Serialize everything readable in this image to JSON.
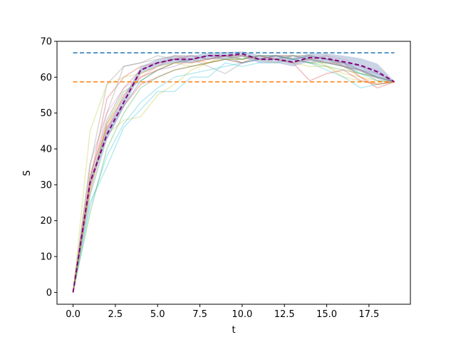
{
  "chart_data": {
    "type": "line",
    "xlabel": "t",
    "ylabel": "S",
    "xlim": [
      -0.95,
      19.95
    ],
    "ylim": [
      -3.3,
      70
    ],
    "x_ticks": [
      0.0,
      2.5,
      5.0,
      7.5,
      10.0,
      12.5,
      15.0,
      17.5
    ],
    "x_tick_labels": [
      "0.0",
      "2.5",
      "5.0",
      "7.5",
      "10.0",
      "12.5",
      "15.0",
      "17.5"
    ],
    "y_ticks": [
      0,
      10,
      20,
      30,
      40,
      50,
      60,
      70
    ],
    "y_tick_labels": [
      "0",
      "10",
      "20",
      "30",
      "40",
      "50",
      "60",
      "70"
    ],
    "grid": false,
    "x": [
      0,
      1,
      2,
      3,
      4,
      5,
      6,
      7,
      8,
      9,
      10,
      11,
      12,
      13,
      14,
      15,
      16,
      17,
      18,
      19
    ],
    "reference_lines": [
      {
        "y": 66.8,
        "color": "#1f77b4",
        "style": "dashed"
      },
      {
        "y": 58.7,
        "color": "#ff7f0e",
        "style": "dashed"
      }
    ],
    "mean_series": {
      "color": "#800080",
      "style": "dashed",
      "values": [
        0,
        30.5,
        44,
        53,
        62,
        64,
        65,
        65,
        66,
        66,
        66.5,
        65,
        65,
        64.2,
        65.5,
        65.2,
        64.3,
        63.3,
        61.5,
        58.7
      ]
    },
    "band": {
      "color": "#8ca0c8",
      "upper": [
        0.5,
        31.5,
        45.5,
        54.5,
        63,
        65,
        66,
        66,
        66.8,
        67,
        67.2,
        66.2,
        66.2,
        65.5,
        66.6,
        66.6,
        66,
        65.3,
        63.8,
        58.9
      ],
      "lower": [
        0,
        29.5,
        42.5,
        51.5,
        61,
        63,
        64,
        64,
        65,
        65,
        65.6,
        64,
        64,
        63,
        64.4,
        64,
        62.8,
        61.5,
        59.5,
        58.5
      ]
    },
    "sample_series": [
      {
        "color": "#1f77b4",
        "values": [
          0,
          27,
          43,
          52,
          59,
          62,
          64,
          65,
          66,
          65,
          64,
          65,
          66,
          65,
          66,
          65,
          64,
          62,
          60,
          58.7
        ]
      },
      {
        "color": "#ff7f0e",
        "values": [
          0,
          33,
          46,
          55,
          61,
          63,
          66,
          65,
          64,
          66,
          65,
          66,
          65,
          66,
          65,
          66,
          63,
          62,
          59,
          58.7
        ]
      },
      {
        "color": "#2ca02c",
        "values": [
          0,
          30,
          47,
          56,
          59,
          62,
          64,
          65,
          66,
          66,
          65,
          66,
          66,
          65,
          64,
          64,
          63,
          61,
          60,
          58.7
        ]
      },
      {
        "color": "#d62728",
        "values": [
          0,
          31,
          54,
          60,
          63,
          64,
          65,
          66,
          65,
          66,
          66,
          65,
          66,
          66,
          65,
          64,
          64,
          60,
          57,
          58.7
        ]
      },
      {
        "color": "#9467bd",
        "values": [
          0,
          29,
          45,
          55,
          60,
          62,
          63,
          65,
          66,
          66,
          65,
          66,
          65,
          66,
          66,
          65,
          64,
          63,
          61,
          58.7
        ]
      },
      {
        "color": "#8c564b",
        "values": [
          0,
          32,
          48,
          57,
          62,
          64,
          65,
          64,
          65,
          66,
          64,
          65,
          66,
          65,
          66,
          65,
          63,
          62,
          60,
          58.7
        ]
      },
      {
        "color": "#e377c2",
        "values": [
          0,
          31,
          50,
          57,
          60,
          63,
          65,
          66,
          65,
          66,
          66,
          65,
          66,
          64,
          65,
          66,
          65,
          63,
          62,
          58.7
        ]
      },
      {
        "color": "#7f7f7f",
        "values": [
          0,
          35,
          58,
          63,
          64,
          66,
          65,
          65,
          63,
          61,
          64,
          65,
          66,
          66,
          65,
          64,
          63,
          62,
          60,
          58.7
        ]
      },
      {
        "color": "#bcbd22",
        "values": [
          0,
          45,
          58,
          60,
          61,
          63,
          64,
          63,
          64,
          65,
          66,
          65,
          64,
          66,
          66,
          63,
          60,
          59,
          58,
          58.7
        ]
      },
      {
        "color": "#17becf",
        "values": [
          0,
          25,
          35,
          46,
          51,
          56,
          56,
          60,
          60,
          64,
          63,
          64,
          64,
          65,
          64,
          62,
          60,
          57,
          58,
          58.7
        ]
      },
      {
        "color": "#bcbd22",
        "values": [
          0,
          28,
          44,
          48,
          49,
          55,
          58,
          62,
          64,
          65,
          65,
          66,
          65,
          64,
          63,
          63,
          61,
          60,
          59,
          58.7
        ]
      },
      {
        "color": "#17becf",
        "values": [
          0,
          24,
          38,
          47,
          53,
          57,
          60,
          61,
          62,
          63,
          64,
          65,
          65,
          66,
          65,
          64,
          63,
          61,
          59,
          58.7
        ]
      },
      {
        "color": "#d62728",
        "values": [
          0,
          30,
          46,
          52,
          58,
          60,
          62,
          63,
          64,
          65,
          64,
          66,
          65,
          64,
          59,
          61,
          62,
          59,
          58,
          58.7
        ]
      },
      {
        "color": "#2ca02c",
        "values": [
          0,
          22,
          40,
          50,
          57,
          60,
          62,
          63,
          64,
          65,
          65,
          66,
          66,
          65,
          64,
          63,
          62,
          61,
          60,
          58.7
        ]
      },
      {
        "color": "#7f7f7f",
        "values": [
          0,
          36,
          50,
          63,
          64,
          65,
          66,
          66,
          65,
          66,
          66,
          65,
          66,
          65,
          64,
          65,
          64,
          62,
          61,
          58.7
        ]
      },
      {
        "color": "#ff7f0e",
        "values": [
          0,
          28,
          47,
          54,
          60,
          62,
          64,
          64,
          65,
          66,
          66,
          65,
          65,
          64,
          65,
          64,
          63,
          60,
          58,
          58.7
        ]
      }
    ]
  }
}
